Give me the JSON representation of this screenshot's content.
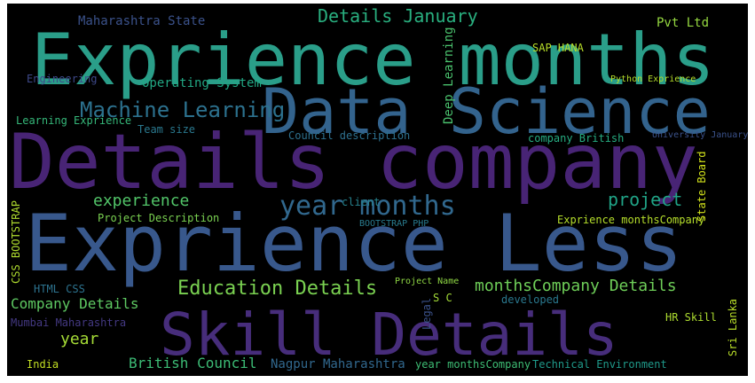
{
  "words": [
    "Exprience months",
    "Data Science",
    "Details company",
    "Exprience Less",
    "Skill Details",
    "Machine Learning",
    "year months",
    "Education Details",
    "Details January",
    "Maharashtra State",
    "Pvt Ltd",
    "SAP HANA",
    "Operating System",
    "Engineering",
    "Learning Exprience",
    "Team size",
    "experience",
    "project",
    "Project Description",
    "Exprience monthsCompany",
    "Company Details",
    "HTML CSS",
    "monthsCompany Details",
    "year",
    "British Council",
    "Nagpur Maharashtra",
    "year monthsCompany",
    "Technical Environment",
    "India",
    "company British",
    "University January",
    "Council description",
    "Python Exprience",
    "HR Skill",
    "Mumbai Maharashtra",
    "Project Name",
    "developed",
    "S C",
    "client",
    "BOOTSTRAP PHP",
    "Deep Learning",
    "CSS BOOTSTRAP",
    "State Board",
    "Sri Lanka",
    "Legal"
  ]
}
